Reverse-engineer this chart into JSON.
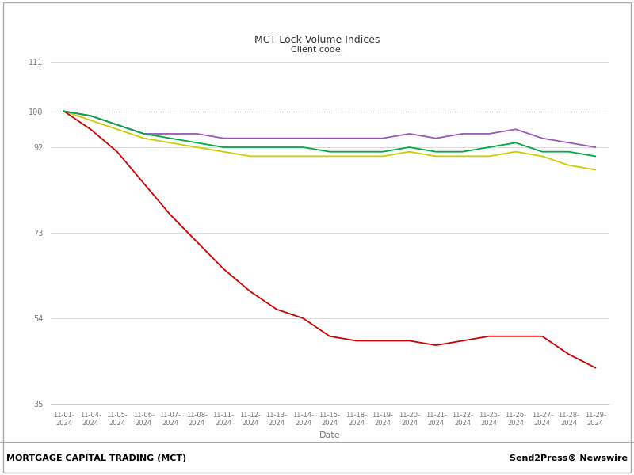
{
  "title": "MCT Lock Volume Indices",
  "subtitle": "Client code:",
  "xlabel": "Date",
  "ylabel": "",
  "ylim": [
    35,
    111
  ],
  "yticks": [
    35,
    54,
    73,
    92,
    100,
    111
  ],
  "footer_left": "MORTGAGE CAPITAL TRADING (MCT)",
  "footer_right": "Send2Press® Newswire",
  "dates": [
    "11-01-\n2024",
    "11-04-\n2024",
    "11-05-\n2024",
    "11-06-\n2024",
    "11-07-\n2024",
    "11-08-\n2024",
    "11-11-\n2024",
    "11-12-\n2024",
    "11-13-\n2024",
    "11-14-\n2024",
    "11-15-\n2024",
    "11-18-\n2024",
    "11-19-\n2024",
    "11-20-\n2024",
    "11-21-\n2024",
    "11-22-\n2024",
    "11-25-\n2024",
    "11-26-\n2024",
    "11-27-\n2024",
    "11-28-\n2024",
    "11-29-\n2024"
  ],
  "series": {
    "Total": {
      "color": "#cccc00",
      "values": [
        100,
        98,
        96,
        94,
        93,
        92,
        91,
        90,
        90,
        90,
        90,
        90,
        90,
        91,
        90,
        90,
        90,
        91,
        90,
        88,
        87
      ]
    },
    "Purchase": {
      "color": "#9b59b6",
      "values": [
        100,
        99,
        97,
        95,
        95,
        95,
        94,
        94,
        94,
        94,
        94,
        94,
        94,
        95,
        94,
        95,
        95,
        96,
        94,
        93,
        92
      ]
    },
    "Rate/Term": {
      "color": "#cc0000",
      "values": [
        100,
        96,
        91,
        84,
        77,
        71,
        65,
        60,
        56,
        54,
        50,
        49,
        49,
        49,
        48,
        49,
        50,
        50,
        50,
        46,
        43
      ]
    },
    "Cash Out": {
      "color": "#00aa44",
      "values": [
        100,
        99,
        97,
        95,
        94,
        93,
        92,
        92,
        92,
        92,
        91,
        91,
        91,
        92,
        91,
        91,
        92,
        93,
        91,
        91,
        90
      ]
    }
  },
  "border_color": "#cccccc",
  "grid_color": "#cccccc",
  "tick_label_color": "#777777",
  "title_color": "#333333",
  "title_fontsize": 9,
  "subtitle_fontsize": 8,
  "xlabel_fontsize": 8,
  "xtick_fontsize": 6,
  "ytick_fontsize": 7,
  "footer_fontsize": 8,
  "line_width": 1.3
}
